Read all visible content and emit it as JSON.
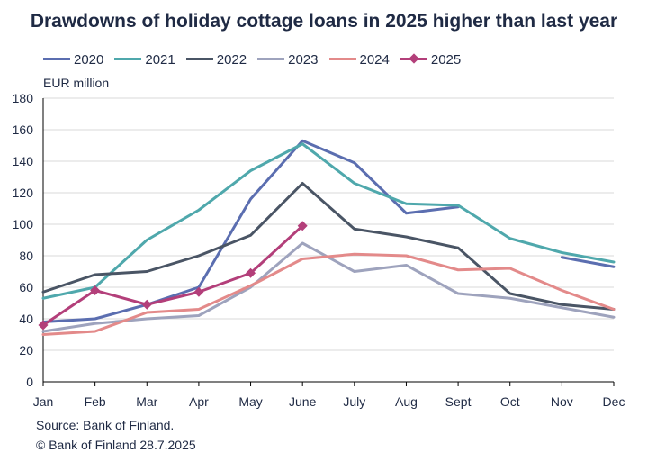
{
  "header": {
    "title": "Drawdowns of holiday cottage loans in 2025 higher than last year"
  },
  "footer": {
    "source": "Source: Bank of Finland.",
    "copyright": "© Bank of Finland 28.7.2025"
  },
  "chart_data": {
    "type": "line",
    "title": "Drawdowns of holiday cottage loans in 2025 higher than last year",
    "ylabel": "EUR million",
    "xlabel": "",
    "categories": [
      "Jan",
      "Feb",
      "Mar",
      "Apr",
      "May",
      "June",
      "July",
      "Aug",
      "Sept",
      "Oct",
      "Nov",
      "Dec"
    ],
    "ylim": [
      0,
      180
    ],
    "yticks": [
      0,
      20,
      40,
      60,
      80,
      100,
      120,
      140,
      160,
      180
    ],
    "grid": "horizontal",
    "legend": "top-left",
    "series": [
      {
        "name": "2020",
        "color": "#5b6eb0",
        "marker": false,
        "values": [
          38,
          40,
          49,
          60,
          116,
          153,
          139,
          107,
          111,
          null,
          79,
          73
        ]
      },
      {
        "name": "2021",
        "color": "#4fa8ac",
        "marker": false,
        "values": [
          53,
          60,
          90,
          109,
          134,
          151,
          126,
          113,
          112,
          91,
          82,
          76
        ]
      },
      {
        "name": "2022",
        "color": "#4a5565",
        "marker": false,
        "values": [
          57,
          68,
          70,
          80,
          93,
          126,
          97,
          92,
          85,
          56,
          49,
          46
        ]
      },
      {
        "name": "2023",
        "color": "#9ea3bd",
        "marker": false,
        "values": [
          32,
          37,
          40,
          42,
          60,
          88,
          70,
          74,
          56,
          53,
          47,
          41
        ]
      },
      {
        "name": "2024",
        "color": "#e38a8a",
        "marker": false,
        "values": [
          30,
          32,
          44,
          46,
          61,
          78,
          81,
          80,
          71,
          72,
          58,
          46
        ]
      },
      {
        "name": "2025",
        "color": "#b33f7a",
        "marker": true,
        "values": [
          36,
          58,
          49,
          57,
          69,
          99,
          null,
          null,
          null,
          null,
          null,
          null
        ]
      }
    ]
  }
}
